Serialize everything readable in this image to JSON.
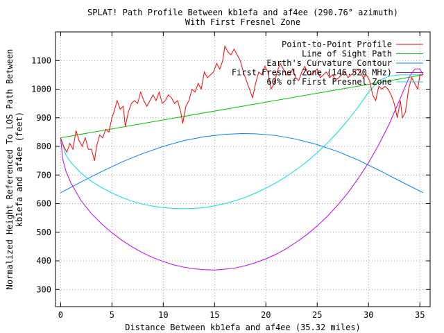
{
  "chart_data": {
    "type": "line",
    "title": "SPLAT! Path Profile Between kb1efa and af4ee (290.76° azimuth)",
    "subtitle": "With First Fresnel Zone",
    "xlabel": "Distance Between kb1efa and af4ee (35.32 miles)",
    "ylabel": [
      "Normalized Height Referenced To LOS Path Between",
      "kb1efa and af4ee (feet)"
    ],
    "xlim": [
      -0.5,
      36
    ],
    "ylim": [
      240,
      1200
    ],
    "x_ticks": [
      0,
      5,
      10,
      15,
      20,
      25,
      30,
      35
    ],
    "y_ticks": [
      300,
      400,
      500,
      600,
      700,
      800,
      900,
      1000,
      1100
    ],
    "grid": true,
    "legend_position": "top-right",
    "series": [
      {
        "name": "Point-to-Point Profile",
        "color": "#ff0000",
        "points": [
          [
            0,
            830
          ],
          [
            0.3,
            800
          ],
          [
            0.6,
            780
          ],
          [
            0.9,
            810
          ],
          [
            1.2,
            790
          ],
          [
            1.5,
            855
          ],
          [
            1.8,
            820
          ],
          [
            2.1,
            800
          ],
          [
            2.4,
            830
          ],
          [
            2.7,
            790
          ],
          [
            3.0,
            790
          ],
          [
            3.3,
            750
          ],
          [
            3.5,
            800
          ],
          [
            3.8,
            840
          ],
          [
            4.1,
            830
          ],
          [
            4.4,
            860
          ],
          [
            4.7,
            850
          ],
          [
            5.0,
            900
          ],
          [
            5.2,
            920
          ],
          [
            5.5,
            960
          ],
          [
            5.8,
            930
          ],
          [
            6.1,
            940
          ],
          [
            6.3,
            870
          ],
          [
            6.6,
            920
          ],
          [
            6.9,
            950
          ],
          [
            7.2,
            960
          ],
          [
            7.5,
            950
          ],
          [
            7.8,
            990
          ],
          [
            8.1,
            960
          ],
          [
            8.4,
            940
          ],
          [
            8.7,
            960
          ],
          [
            9.0,
            980
          ],
          [
            9.3,
            960
          ],
          [
            9.6,
            990
          ],
          [
            9.9,
            950
          ],
          [
            10.2,
            960
          ],
          [
            10.5,
            980
          ],
          [
            10.8,
            970
          ],
          [
            11.1,
            950
          ],
          [
            11.4,
            960
          ],
          [
            11.7,
            920
          ],
          [
            11.9,
            880
          ],
          [
            12.2,
            940
          ],
          [
            12.5,
            960
          ],
          [
            12.8,
            1000
          ],
          [
            13.1,
            990
          ],
          [
            13.4,
            1020
          ],
          [
            13.7,
            1000
          ],
          [
            14.0,
            1060
          ],
          [
            14.3,
            1040
          ],
          [
            14.6,
            1050
          ],
          [
            14.9,
            1060
          ],
          [
            15.2,
            1090
          ],
          [
            15.5,
            1070
          ],
          [
            15.8,
            1100
          ],
          [
            16.0,
            1150
          ],
          [
            16.3,
            1130
          ],
          [
            16.6,
            1120
          ],
          [
            16.9,
            1140
          ],
          [
            17.2,
            1120
          ],
          [
            17.5,
            1100
          ],
          [
            17.8,
            1060
          ],
          [
            18.1,
            1030
          ],
          [
            18.4,
            1000
          ],
          [
            18.7,
            970
          ],
          [
            19.0,
            1020
          ],
          [
            19.3,
            1060
          ],
          [
            19.6,
            1050
          ],
          [
            19.9,
            1080
          ],
          [
            20.2,
            1060
          ],
          [
            20.5,
            1000
          ],
          [
            20.8,
            1020
          ],
          [
            21.1,
            1060
          ],
          [
            21.4,
            1090
          ],
          [
            21.7,
            1070
          ],
          [
            22.0,
            1050
          ],
          [
            22.3,
            1050
          ],
          [
            22.6,
            1070
          ],
          [
            22.9,
            1040
          ],
          [
            23.2,
            1030
          ],
          [
            23.5,
            1060
          ],
          [
            23.8,
            1080
          ],
          [
            24.1,
            1050
          ],
          [
            24.4,
            1050
          ],
          [
            24.7,
            1060
          ],
          [
            25.0,
            1070
          ],
          [
            25.3,
            1040
          ],
          [
            25.6,
            1050
          ],
          [
            25.9,
            1060
          ],
          [
            26.2,
            1040
          ],
          [
            26.5,
            1050
          ],
          [
            26.8,
            1030
          ],
          [
            27.1,
            1040
          ],
          [
            27.4,
            1050
          ],
          [
            27.7,
            1060
          ],
          [
            28.0,
            1040
          ],
          [
            28.3,
            1050
          ],
          [
            28.6,
            1060
          ],
          [
            28.9,
            1070
          ],
          [
            29.2,
            1060
          ],
          [
            29.5,
            1040
          ],
          [
            29.8,
            1050
          ],
          [
            30.1,
            1030
          ],
          [
            30.4,
            980
          ],
          [
            30.7,
            960
          ],
          [
            31.0,
            1010
          ],
          [
            31.3,
            1000
          ],
          [
            31.6,
            1010
          ],
          [
            31.9,
            1000
          ],
          [
            32.2,
            980
          ],
          [
            32.5,
            950
          ],
          [
            32.8,
            900
          ],
          [
            33.1,
            960
          ],
          [
            33.3,
            900
          ],
          [
            33.6,
            920
          ],
          [
            33.9,
            1000
          ],
          [
            34.2,
            1040
          ],
          [
            34.5,
            1020
          ],
          [
            34.8,
            1000
          ],
          [
            35.0,
            1050
          ],
          [
            35.32,
            1050
          ]
        ]
      },
      {
        "name": "Line of Sight Path",
        "color": "#00c000",
        "points": [
          [
            0,
            830
          ],
          [
            35.32,
            1050
          ]
        ]
      },
      {
        "name": "Earth's Curvature Contour",
        "color": "#0080ff",
        "points": [
          [
            0,
            638
          ],
          [
            2,
            676
          ],
          [
            4,
            712
          ],
          [
            6,
            746
          ],
          [
            8,
            775
          ],
          [
            10,
            800
          ],
          [
            12,
            820
          ],
          [
            14,
            834
          ],
          [
            16,
            842
          ],
          [
            17.66,
            845
          ],
          [
            19,
            844
          ],
          [
            21,
            838
          ],
          [
            23,
            825
          ],
          [
            25,
            806
          ],
          [
            27,
            782
          ],
          [
            29,
            752
          ],
          [
            31,
            717
          ],
          [
            33,
            680
          ],
          [
            35.32,
            638
          ]
        ]
      },
      {
        "name": "First Fresnel Zone (146.520 MHz)",
        "color": "#c000ff",
        "points": [
          [
            0,
            830
          ],
          [
            0.2,
            756
          ],
          [
            0.5,
            715
          ],
          [
            1,
            672
          ],
          [
            2,
            610
          ],
          [
            3,
            565
          ],
          [
            4,
            529
          ],
          [
            5,
            498
          ],
          [
            6,
            471
          ],
          [
            7,
            448
          ],
          [
            8,
            428
          ],
          [
            9,
            411
          ],
          [
            10,
            398
          ],
          [
            11,
            386
          ],
          [
            12,
            378
          ],
          [
            13,
            372
          ],
          [
            14,
            369
          ],
          [
            15,
            368
          ],
          [
            16,
            371
          ],
          [
            17,
            375
          ],
          [
            18,
            383
          ],
          [
            19,
            394
          ],
          [
            20,
            407
          ],
          [
            21,
            423
          ],
          [
            22,
            443
          ],
          [
            23,
            466
          ],
          [
            24,
            492
          ],
          [
            25,
            522
          ],
          [
            26,
            556
          ],
          [
            27,
            595
          ],
          [
            28,
            638
          ],
          [
            29,
            688
          ],
          [
            30,
            743
          ],
          [
            31,
            806
          ],
          [
            32,
            877
          ],
          [
            33,
            960
          ],
          [
            34,
            1045
          ],
          [
            34.5,
            1070
          ],
          [
            35,
            1070
          ],
          [
            35.32,
            1050
          ]
        ]
      },
      {
        "name": "60% of First Fresnel Zone",
        "color": "#00e0e0",
        "points": [
          [
            0,
            830
          ],
          [
            0.5,
            770
          ],
          [
            1,
            744
          ],
          [
            2,
            706
          ],
          [
            3,
            678
          ],
          [
            4,
            656
          ],
          [
            5,
            637
          ],
          [
            6,
            621
          ],
          [
            7,
            608
          ],
          [
            8,
            598
          ],
          [
            9,
            591
          ],
          [
            10,
            586
          ],
          [
            11,
            583
          ],
          [
            12,
            582
          ],
          [
            13,
            583
          ],
          [
            14,
            586
          ],
          [
            15,
            592
          ],
          [
            16,
            600
          ],
          [
            17,
            610
          ],
          [
            18,
            622
          ],
          [
            19,
            637
          ],
          [
            20,
            654
          ],
          [
            21,
            673
          ],
          [
            22,
            695
          ],
          [
            23,
            720
          ],
          [
            24,
            747
          ],
          [
            25,
            778
          ],
          [
            26,
            812
          ],
          [
            27,
            850
          ],
          [
            28,
            892
          ],
          [
            29,
            938
          ],
          [
            30,
            989
          ],
          [
            31,
            1030
          ],
          [
            32,
            1045
          ],
          [
            33,
            1050
          ],
          [
            34,
            1050
          ],
          [
            35.32,
            1050
          ]
        ]
      }
    ]
  }
}
